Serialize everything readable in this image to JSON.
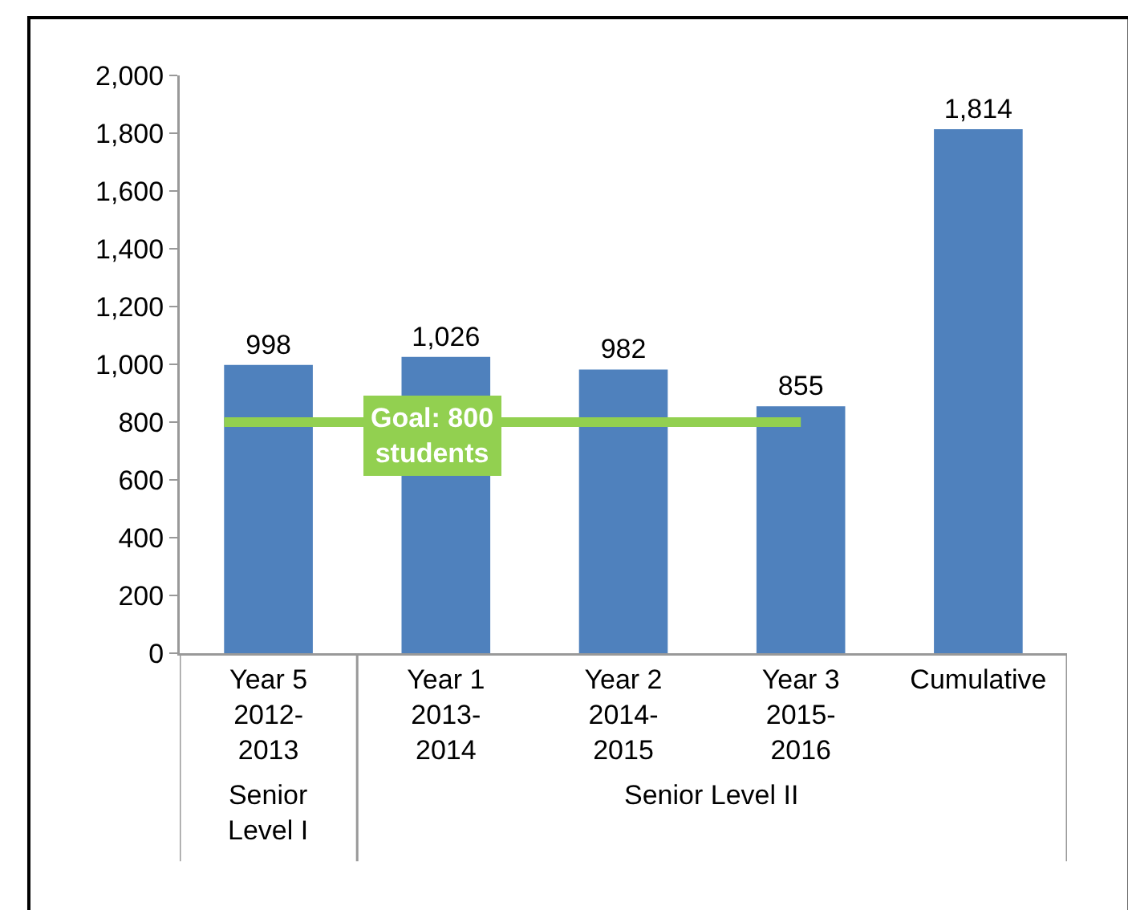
{
  "chart_data": {
    "type": "bar",
    "categories": [
      "Year 5\n2012-\n2013",
      "Year 1\n2013-\n2014",
      "Year 2\n2014-\n2015",
      "Year 3\n2015-\n2016",
      "Cumulative"
    ],
    "values": [
      998,
      1026,
      982,
      855,
      1814
    ],
    "color": "#4f81bd",
    "data_labels": true,
    "ylim": [
      0,
      2000
    ],
    "yticks": [
      {
        "value": 0,
        "label": "0"
      },
      {
        "value": 200,
        "label": "200"
      },
      {
        "value": 400,
        "label": "400"
      },
      {
        "value": 600,
        "label": "600"
      },
      {
        "value": 800,
        "label": "800"
      },
      {
        "value": 1000,
        "label": "1,000"
      },
      {
        "value": 1200,
        "label": "1,200"
      },
      {
        "value": 1400,
        "label": "1,400"
      },
      {
        "value": 1600,
        "label": "1,600"
      },
      {
        "value": 1800,
        "label": "1,800"
      },
      {
        "value": 2000,
        "label": "2,000"
      }
    ],
    "value_labels": [
      "998",
      "1,026",
      "982",
      "855",
      "1,814"
    ],
    "grid": false,
    "ref_lines": [
      {
        "axis": "y",
        "value": 800,
        "label": "Goal: 800\nstudents",
        "color": "#92d050"
      }
    ],
    "annotations": [
      "Senior\nLevel I",
      "Senior Level II"
    ]
  }
}
